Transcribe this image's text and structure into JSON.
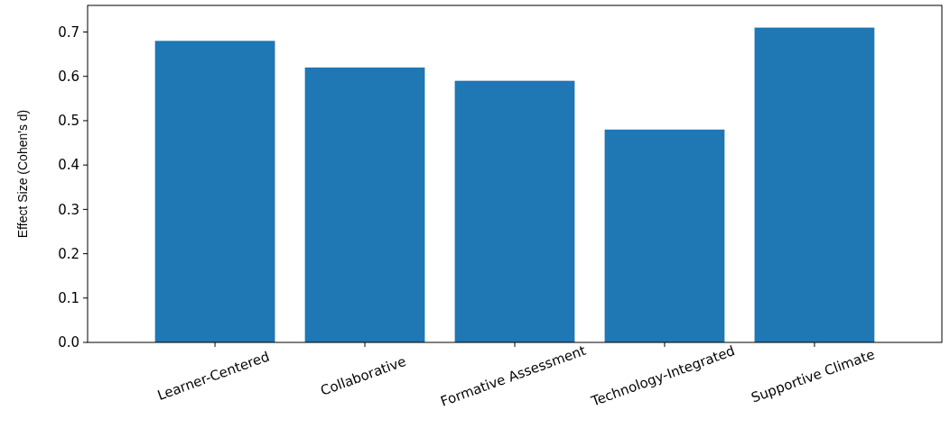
{
  "chart_data": {
    "type": "bar",
    "ylabel": "Effect Size (Cohen's d)",
    "categories": [
      "Learner-Centered",
      "Collaborative",
      "Formative Assessment",
      "Technology-Integrated",
      "Supportive Climate"
    ],
    "values": [
      0.68,
      0.62,
      0.59,
      0.48,
      0.71
    ],
    "color": "#1f77b4",
    "ylim": [
      0,
      0.76
    ],
    "yticks": [
      {
        "value": 0,
        "label": "0.0"
      },
      0.1,
      0.2,
      0.3,
      0.4,
      0.5,
      0.6,
      0.7
    ],
    "grid": false
  }
}
